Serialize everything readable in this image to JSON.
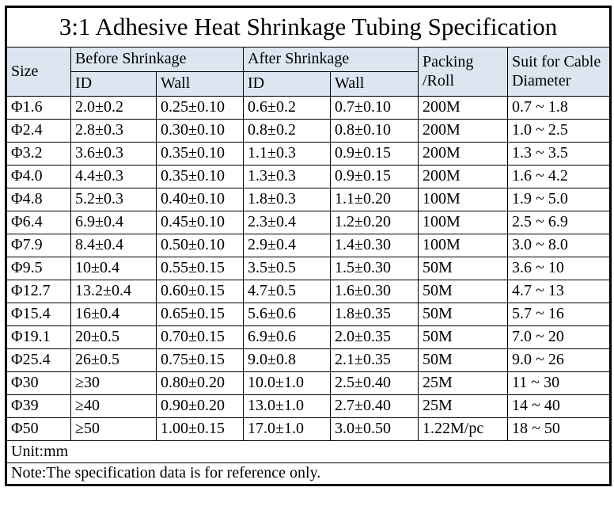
{
  "title": "3:1 Adhesive Heat Shrinkage Tubing Specification",
  "table": {
    "header": {
      "size": "Size",
      "before": "Before Shrinkage",
      "after": "After Shrinkage",
      "id": "ID",
      "wall": "Wall",
      "packing_line1": "Packing",
      "packing_line2": "/Roll",
      "suit_line1": "Suit for Cable",
      "suit_line2": "Diameter"
    },
    "rows": [
      [
        "Φ1.6",
        "2.0±0.2",
        "0.25±0.10",
        "0.6±0.2",
        "0.7±0.10",
        "200M",
        "0.7 ~ 1.8"
      ],
      [
        "Φ2.4",
        "2.8±0.3",
        "0.30±0.10",
        "0.8±0.2",
        "0.8±0.10",
        "200M",
        "1.0 ~ 2.5"
      ],
      [
        "Φ3.2",
        "3.6±0.3",
        "0.35±0.10",
        "1.1±0.3",
        "0.9±0.15",
        "200M",
        "1.3 ~ 3.5"
      ],
      [
        "Φ4.0",
        "4.4±0.3",
        "0.35±0.10",
        "1.3±0.3",
        "0.9±0.15",
        "200M",
        "1.6 ~ 4.2"
      ],
      [
        "Φ4.8",
        "5.2±0.3",
        "0.40±0.10",
        "1.8±0.3",
        "1.1±0.20",
        "100M",
        "1.9 ~ 5.0"
      ],
      [
        "Φ6.4",
        "6.9±0.4",
        "0.45±0.10",
        "2.3±0.4",
        "1.2±0.20",
        "100M",
        "2.5 ~ 6.9"
      ],
      [
        "Φ7.9",
        "8.4±0.4",
        "0.50±0.10",
        "2.9±0.4",
        "1.4±0.30",
        "100M",
        "3.0 ~ 8.0"
      ],
      [
        "Φ9.5",
        "10±0.4",
        "0.55±0.15",
        "3.5±0.5",
        "1.5±0.30",
        "50M",
        "3.6 ~ 10"
      ],
      [
        "Φ12.7",
        "13.2±0.4",
        "0.60±0.15",
        "4.7±0.5",
        "1.6±0.30",
        "50M",
        "4.7 ~ 13"
      ],
      [
        "Φ15.4",
        "16±0.4",
        "0.65±0.15",
        "5.6±0.6",
        "1.8±0.35",
        "50M",
        "5.7 ~ 16"
      ],
      [
        "Φ19.1",
        "20±0.5",
        "0.70±0.15",
        "6.9±0.6",
        "2.0±0.35",
        "50M",
        "7.0 ~ 20"
      ],
      [
        "Φ25.4",
        "26±0.5",
        "0.75±0.15",
        "9.0±0.8",
        "2.1±0.35",
        "50M",
        "9.0 ~ 26"
      ],
      [
        "Φ30",
        "≥30",
        "0.80±0.20",
        "10.0±1.0",
        "2.5±0.40",
        "25M",
        "11 ~ 30"
      ],
      [
        "Φ39",
        "≥40",
        "0.90±0.20",
        "13.0±1.0",
        "2.7±0.40",
        "25M",
        "14 ~ 40"
      ],
      [
        "Φ50",
        "≥50",
        "1.00±0.15",
        "17.0±1.0",
        "3.0±0.50",
        "1.22M/pc",
        "18 ~ 50"
      ]
    ],
    "unit": "Unit:mm",
    "note": "Note:The specification data is for reference only."
  },
  "colors": {
    "header_bg": "#dce6f1",
    "border": "#000000",
    "text": "#000000",
    "page_bg": "#ffffff"
  }
}
